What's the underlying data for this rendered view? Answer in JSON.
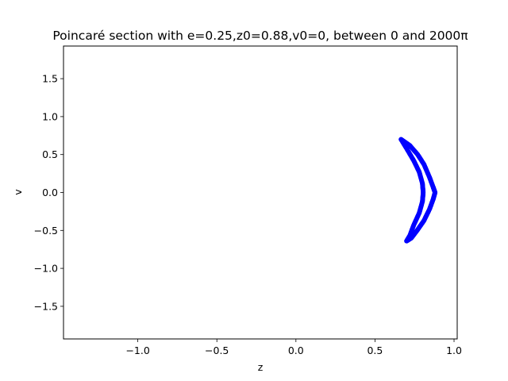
{
  "chart_data": {
    "type": "scatter",
    "title": "Poincaré section with e=0.25,z0=0.88,v0=0, between 0 and 2000π",
    "xlabel": "z",
    "ylabel": "v",
    "xlim": [
      -1.47,
      1.02
    ],
    "ylim": [
      -1.93,
      1.93
    ],
    "x_ticks": [
      -1.0,
      -0.5,
      0.0,
      0.5,
      1.0
    ],
    "x_tick_labels": [
      "−1.0",
      "−0.5",
      "0.0",
      "0.5",
      "1.0"
    ],
    "y_ticks": [
      -1.5,
      -1.0,
      -0.5,
      0.0,
      0.5,
      1.0,
      1.5
    ],
    "y_tick_labels": [
      "−1.5",
      "−1.0",
      "−0.5",
      "0.0",
      "0.5",
      "1.0",
      "1.5"
    ],
    "grid": false,
    "legend": "none",
    "marker_color": "#0000ff",
    "curve_description": "closed crescent-shaped orbit of points",
    "series": [
      {
        "outer_arc": {
          "z": [
            0.665,
            0.72,
            0.77,
            0.81,
            0.845,
            0.868,
            0.88,
            0.868,
            0.845,
            0.81,
            0.77,
            0.73,
            0.7
          ],
          "v": [
            0.7,
            0.62,
            0.5,
            0.37,
            0.2,
            0.07,
            0.0,
            -0.09,
            -0.22,
            -0.37,
            -0.49,
            -0.6,
            -0.64
          ]
        },
        "inner_arc": {
          "z": [
            0.665,
            0.7,
            0.745,
            0.78,
            0.8,
            0.805,
            0.8,
            0.78,
            0.745,
            0.72,
            0.7
          ],
          "v": [
            0.7,
            0.58,
            0.42,
            0.27,
            0.12,
            0.0,
            -0.12,
            -0.27,
            -0.43,
            -0.57,
            -0.64
          ]
        }
      }
    ]
  }
}
